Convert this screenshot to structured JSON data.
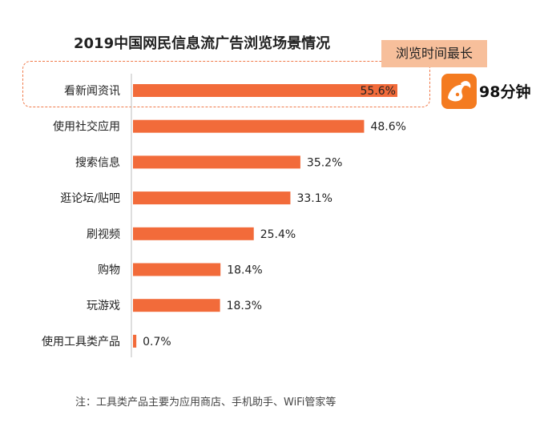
{
  "title": "2019中国网民信息流广告浏览场景情况",
  "callout_label": "浏览时间最长",
  "brand": {
    "name": "98分钟",
    "icon": "uc-squirrel-logo"
  },
  "note": "注：工具类产品主要为应用商店、手机助手、WiFi管家等",
  "colors": {
    "bar": "#f26b3a",
    "callout_bg": "#f7bf9b",
    "dash": "#f07a4a"
  },
  "chart_data": {
    "type": "bar",
    "orientation": "horizontal",
    "title": "2019中国网民信息流广告浏览场景情况",
    "categories": [
      "看新闻资讯",
      "使用社交应用",
      "搜索信息",
      "逛论坛/贴吧",
      "刷视频",
      "购物",
      "玩游戏",
      "使用工具类产品"
    ],
    "values": [
      55.6,
      48.6,
      35.2,
      33.1,
      25.4,
      18.4,
      18.3,
      0.7
    ],
    "value_labels": [
      "55.6%",
      "48.6%",
      "35.2%",
      "33.1%",
      "25.4%",
      "18.4%",
      "18.3%",
      "0.7%"
    ],
    "xlim": [
      0,
      60
    ],
    "unit": "%",
    "grid": false,
    "legend": "none"
  }
}
